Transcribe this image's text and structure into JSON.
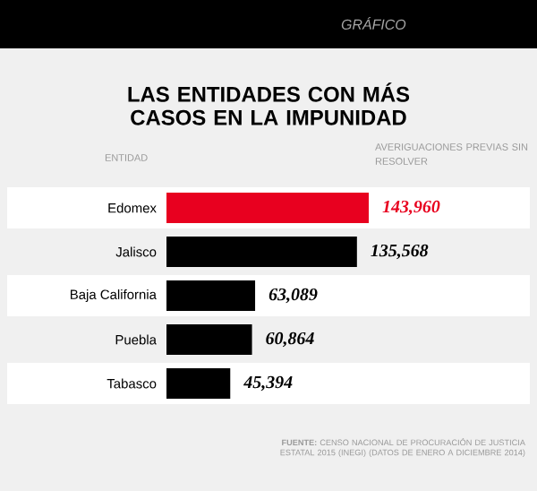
{
  "chart_data": {
    "type": "bar",
    "orientation": "horizontal",
    "title": "LAS ENTIDADES CON MÁS CASOS EN LA IMPUNIDAD",
    "ylabel": "ENTIDAD",
    "xlabel": "AVERIGUACIONES PREVIAS SIN RESOLVER",
    "categories": [
      "Edomex",
      "Jalisco",
      "Baja California",
      "Puebla",
      "Tabasco"
    ],
    "values": [
      143960,
      135568,
      63089,
      60864,
      45394
    ],
    "value_labels": [
      "143,960",
      "135,568",
      "63,089",
      "60,864",
      "45,394"
    ],
    "colors": [
      "#e8001f",
      "#000000",
      "#000000",
      "#000000",
      "#000000"
    ],
    "annotations": [
      "GRÁFICO",
      "**FUENTE:** CENSO NACIONAL DE PROCURACIÓN DE JUSTICIA ESTATAL 2015 (INEGI) (DATOS DE ENERO A DICIEMBRE 2014)"
    ]
  }
}
